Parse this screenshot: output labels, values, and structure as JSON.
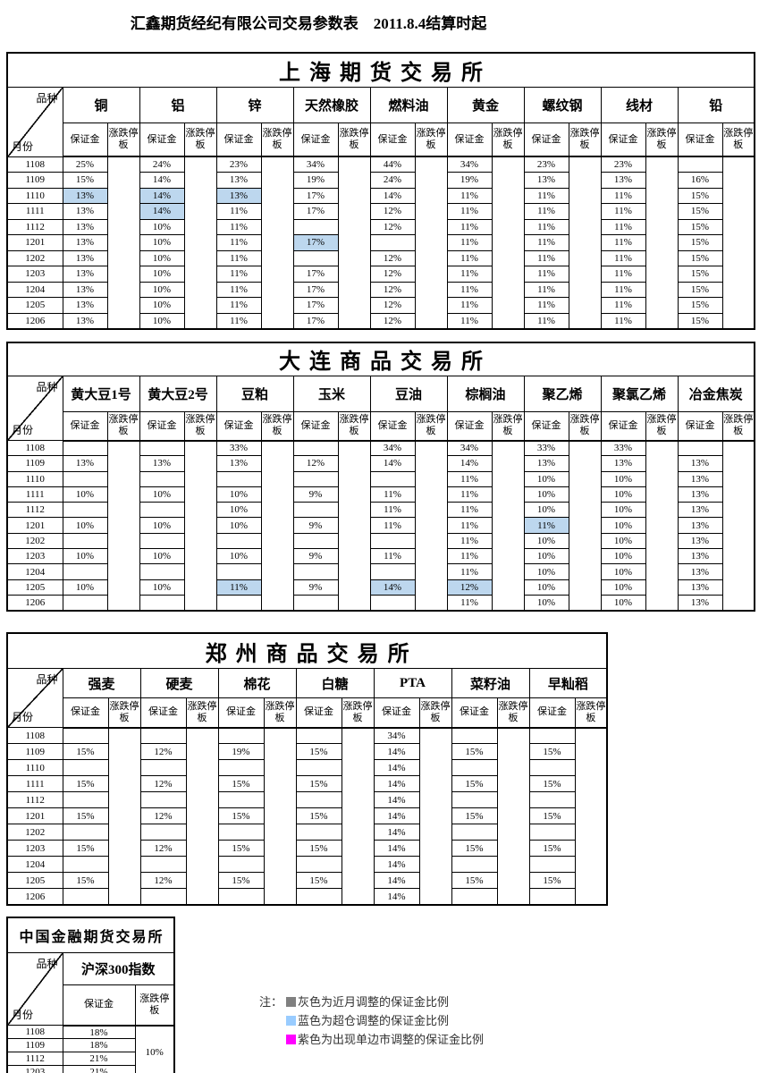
{
  "page_title": "汇鑫期货经纪有限公司交易参数表　2011.8.4结算时起",
  "colors": {
    "highlight_blue": "#bdd7ee"
  },
  "header_labels": {
    "variety": "品种",
    "month": "月份",
    "margin": "保证金",
    "limit": "涨跌停板"
  },
  "exchanges": [
    {
      "id": "shfe",
      "title": "上海期货交易所",
      "months": [
        "1108",
        "1109",
        "1110",
        "1111",
        "1112",
        "1201",
        "1202",
        "1203",
        "1204",
        "1205",
        "1206"
      ],
      "commodities": [
        {
          "name": "铜",
          "margin": [
            "25%",
            "15%",
            "13%",
            "13%",
            "13%",
            "13%",
            "13%",
            "13%",
            "13%",
            "13%",
            "13%"
          ],
          "blue": [
            2
          ]
        },
        {
          "name": "铝",
          "margin": [
            "24%",
            "14%",
            "14%",
            "14%",
            "10%",
            "10%",
            "10%",
            "10%",
            "10%",
            "10%",
            "10%"
          ],
          "blue": [
            2,
            3
          ]
        },
        {
          "name": "锌",
          "margin": [
            "23%",
            "13%",
            "13%",
            "11%",
            "11%",
            "11%",
            "11%",
            "11%",
            "11%",
            "11%",
            "11%"
          ],
          "blue": [
            2
          ]
        },
        {
          "name": "天然橡胶",
          "margin": [
            "34%",
            "19%",
            "17%",
            "17%",
            "",
            "17%",
            "",
            "17%",
            "17%",
            "17%",
            "17%"
          ],
          "blue": [
            5
          ]
        },
        {
          "name": "燃料油",
          "margin": [
            "44%",
            "24%",
            "14%",
            "12%",
            "12%",
            "",
            "12%",
            "12%",
            "12%",
            "12%",
            "12%"
          ]
        },
        {
          "name": "黄金",
          "margin": [
            "34%",
            "19%",
            "11%",
            "11%",
            "11%",
            "11%",
            "11%",
            "11%",
            "11%",
            "11%",
            "11%"
          ]
        },
        {
          "name": "螺纹钢",
          "margin": [
            "23%",
            "13%",
            "11%",
            "11%",
            "11%",
            "11%",
            "11%",
            "11%",
            "11%",
            "11%",
            "11%"
          ]
        },
        {
          "name": "线材",
          "margin": [
            "23%",
            "13%",
            "11%",
            "11%",
            "11%",
            "11%",
            "11%",
            "11%",
            "11%",
            "11%",
            "11%"
          ]
        },
        {
          "name": "铅",
          "margin": [
            "",
            "16%",
            "15%",
            "15%",
            "15%",
            "15%",
            "15%",
            "15%",
            "15%",
            "15%",
            "15%"
          ]
        }
      ]
    },
    {
      "id": "dce",
      "title": "大连商品交易所",
      "months": [
        "1108",
        "1109",
        "1110",
        "1111",
        "1112",
        "1201",
        "1202",
        "1203",
        "1204",
        "1205",
        "1206"
      ],
      "commodities": [
        {
          "name": "黄大豆1号",
          "margin": [
            "",
            "13%",
            "",
            "10%",
            "",
            "10%",
            "",
            "10%",
            "",
            "10%",
            ""
          ]
        },
        {
          "name": "黄大豆2号",
          "margin": [
            "",
            "13%",
            "",
            "10%",
            "",
            "10%",
            "",
            "10%",
            "",
            "10%",
            ""
          ]
        },
        {
          "name": "豆粕",
          "margin": [
            "33%",
            "13%",
            "",
            "10%",
            "10%",
            "10%",
            "",
            "10%",
            "",
            "11%",
            ""
          ],
          "blue": [
            9
          ]
        },
        {
          "name": "玉米",
          "margin": [
            "",
            "12%",
            "",
            "9%",
            "",
            "9%",
            "",
            "9%",
            "",
            "9%",
            ""
          ]
        },
        {
          "name": "豆油",
          "margin": [
            "34%",
            "14%",
            "",
            "11%",
            "11%",
            "11%",
            "",
            "11%",
            "",
            "14%",
            ""
          ],
          "blue": [
            9
          ]
        },
        {
          "name": "棕榈油",
          "margin": [
            "34%",
            "14%",
            "11%",
            "11%",
            "11%",
            "11%",
            "11%",
            "11%",
            "11%",
            "12%",
            "11%"
          ],
          "blue": [
            9
          ]
        },
        {
          "name": "聚乙烯",
          "margin": [
            "33%",
            "13%",
            "10%",
            "10%",
            "10%",
            "11%",
            "10%",
            "10%",
            "10%",
            "10%",
            "10%"
          ],
          "blue": [
            5
          ]
        },
        {
          "name": "聚氯乙烯",
          "margin": [
            "33%",
            "13%",
            "10%",
            "10%",
            "10%",
            "10%",
            "10%",
            "10%",
            "10%",
            "10%",
            "10%"
          ]
        },
        {
          "name": "冶金焦炭",
          "margin": [
            "",
            "13%",
            "13%",
            "13%",
            "13%",
            "13%",
            "13%",
            "13%",
            "13%",
            "13%",
            "13%"
          ]
        }
      ]
    },
    {
      "id": "czce",
      "title": "郑州商品交易所",
      "months": [
        "1108",
        "1109",
        "1110",
        "1111",
        "1112",
        "1201",
        "1202",
        "1203",
        "1204",
        "1205",
        "1206"
      ],
      "commodities": [
        {
          "name": "强麦",
          "margin": [
            "",
            "15%",
            "",
            "15%",
            "",
            "15%",
            "",
            "15%",
            "",
            "15%",
            ""
          ]
        },
        {
          "name": "硬麦",
          "margin": [
            "",
            "12%",
            "",
            "12%",
            "",
            "12%",
            "",
            "12%",
            "",
            "12%",
            ""
          ]
        },
        {
          "name": "棉花",
          "margin": [
            "",
            "19%",
            "",
            "15%",
            "",
            "15%",
            "",
            "15%",
            "",
            "15%",
            ""
          ]
        },
        {
          "name": "白糖",
          "margin": [
            "",
            "15%",
            "",
            "15%",
            "",
            "15%",
            "",
            "15%",
            "",
            "15%",
            ""
          ]
        },
        {
          "name": "PTA",
          "margin": [
            "34%",
            "14%",
            "14%",
            "14%",
            "14%",
            "14%",
            "14%",
            "14%",
            "14%",
            "14%",
            "14%"
          ]
        },
        {
          "name": "菜籽油",
          "margin": [
            "",
            "15%",
            "",
            "15%",
            "",
            "15%",
            "",
            "15%",
            "",
            "15%",
            ""
          ]
        },
        {
          "name": "早籼稻",
          "margin": [
            "",
            "15%",
            "",
            "15%",
            "",
            "15%",
            "",
            "15%",
            "",
            "15%",
            ""
          ]
        }
      ]
    },
    {
      "id": "cffex",
      "title": "中国金融期货交易所",
      "months": [
        "1108",
        "1109",
        "1112",
        "1203"
      ],
      "commodities": [
        {
          "name": "沪深300指数",
          "margin": [
            "18%",
            "18%",
            "21%",
            "21%"
          ],
          "limit_merged": "10%"
        }
      ]
    }
  ],
  "legend": {
    "prefix": "注：",
    "items": [
      {
        "color": "#808080",
        "label": "灰色为近月调整的保证金比例"
      },
      {
        "color": "#99ccff",
        "label": "蓝色为超仓调整的保证金比例"
      },
      {
        "color": "#ff00ff",
        "label": "紫色为出现单边市调整的保证金比例"
      }
    ]
  }
}
